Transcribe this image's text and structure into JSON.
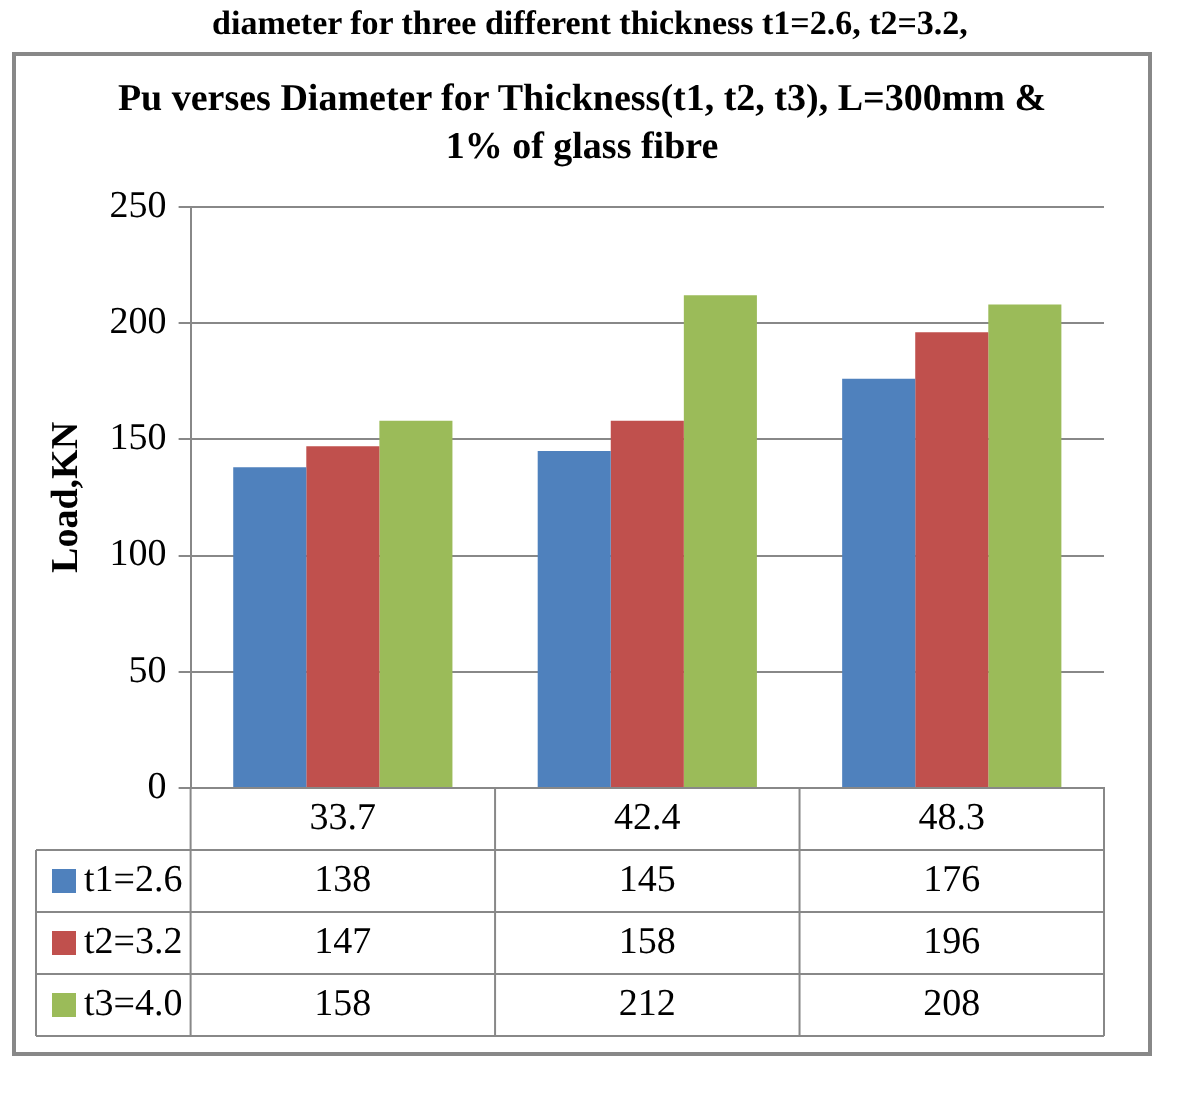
{
  "chart_data": {
    "type": "bar",
    "title": "Pu verses Diameter for Thickness(t1, t2, t3), L=300mm & 1% of glass fibre",
    "annotations": [
      "diameter for three different thickness t1=2.6, t2=3.2,"
    ],
    "ylabel": "Load,KN",
    "categories": [
      "33.7",
      "42.4",
      "48.3"
    ],
    "series": [
      {
        "name": "t1=2.6",
        "color": "#4f81bd",
        "values": [
          138,
          145,
          176
        ]
      },
      {
        "name": "t2=3.2",
        "color": "#c0504d",
        "values": [
          147,
          158,
          196
        ]
      },
      {
        "name": "t3=4.0",
        "color": "#9bbb59",
        "values": [
          158,
          212,
          208
        ]
      }
    ],
    "ylim": [
      0,
      250
    ],
    "yticks": [
      0,
      50,
      100,
      150,
      200,
      250
    ],
    "grid": "y",
    "legend": "bottom",
    "data_labels": true
  }
}
